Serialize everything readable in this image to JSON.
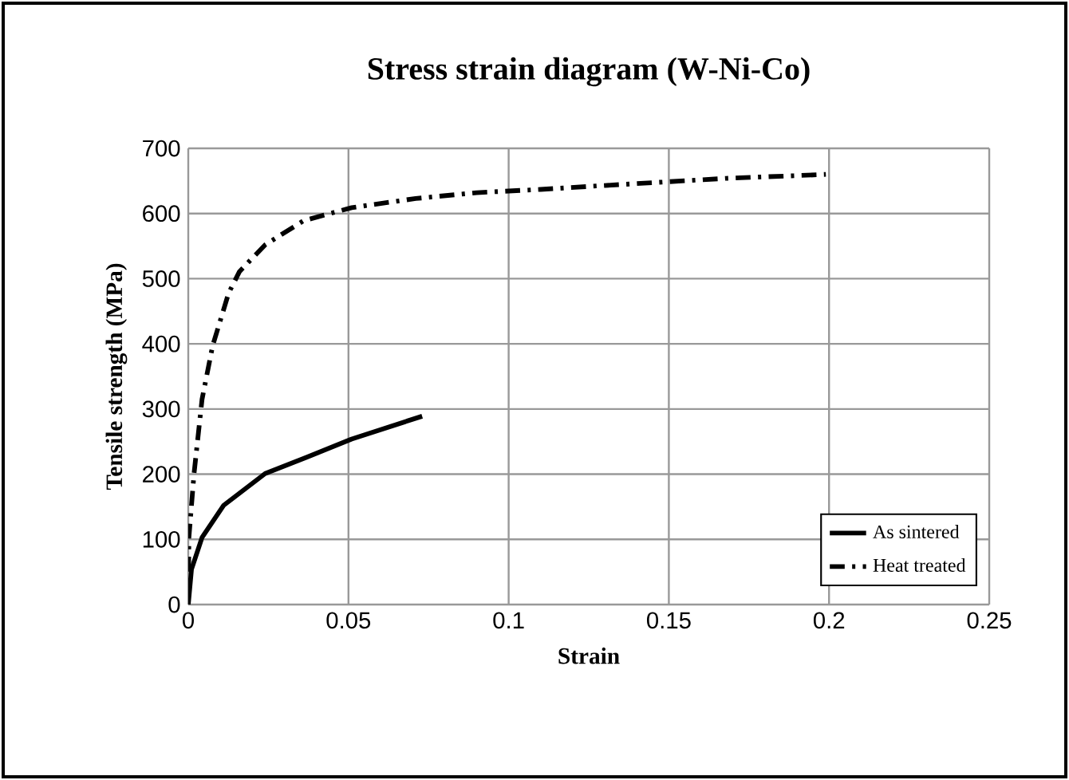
{
  "chart_data": {
    "type": "line",
    "title": "Stress strain diagram (W-Ni-Co)",
    "xlabel": "Strain",
    "ylabel": "Tensile strength (MPa)",
    "xlim": [
      0,
      0.25
    ],
    "xticks": [
      0,
      0.05,
      0.1,
      0.15,
      0.2,
      0.25
    ],
    "ylim": [
      0,
      700
    ],
    "yticks": [
      0,
      100,
      200,
      300,
      400,
      500,
      600,
      700
    ],
    "grid": true,
    "legend": "bottom right",
    "marker": "none",
    "series": [
      {
        "name": "As sintered",
        "color": "#000000",
        "line_style": "solid",
        "x": [
          0,
          0.001,
          0.0043,
          0.011,
          0.024,
          0.037,
          0.051,
          0.073
        ],
        "values": [
          0,
          54,
          103,
          152,
          201,
          226,
          254,
          289
        ]
      },
      {
        "name": "Heat treated",
        "color": "#000000",
        "line_style": "dashdot",
        "x": [
          0,
          0.0002,
          0.0018,
          0.0043,
          0.0076,
          0.0126,
          0.016,
          0.024,
          0.036,
          0.051,
          0.071,
          0.09,
          0.11,
          0.13,
          0.168,
          0.189,
          0.199
        ],
        "values": [
          0,
          103,
          201,
          315,
          397,
          478,
          511,
          552,
          589,
          609,
          623,
          632,
          637,
          643,
          654,
          658,
          660
        ]
      }
    ]
  }
}
